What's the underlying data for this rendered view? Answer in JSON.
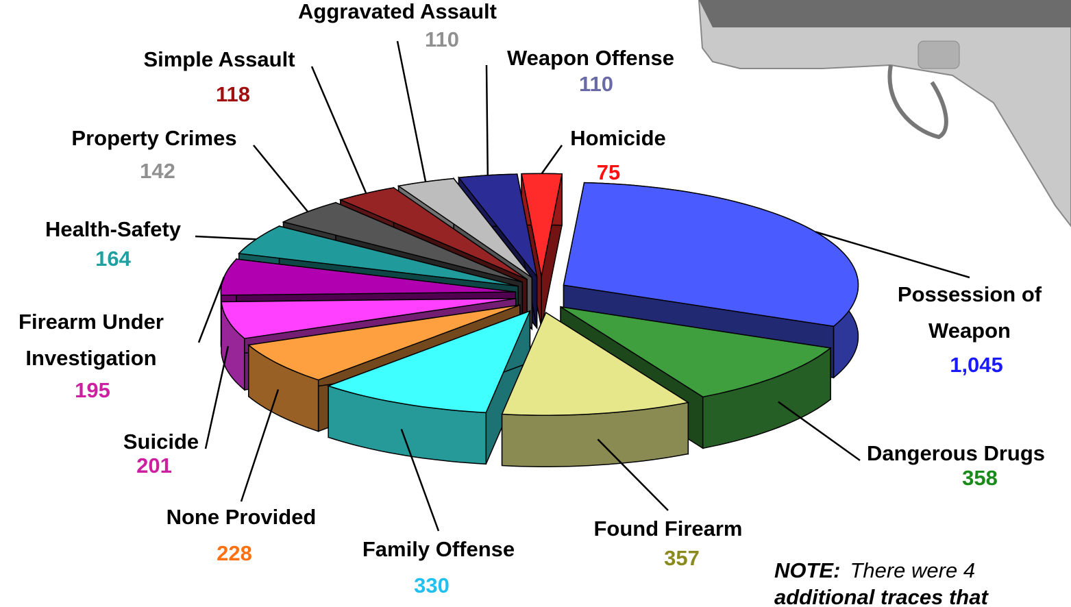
{
  "chart_data": {
    "type": "pie",
    "categories": [
      "Possession of Weapon",
      "Dangerous Drugs",
      "Found Firearm",
      "Family Offense",
      "None Provided",
      "Suicide",
      "Firearm Under Investigation",
      "Health-Safety",
      "Property Crimes",
      "Simple Assault",
      "Aggravated Assault",
      "Weapon Offense",
      "Homicide"
    ],
    "values": [
      1045,
      358,
      357,
      330,
      228,
      201,
      195,
      164,
      142,
      118,
      110,
      110,
      75
    ],
    "value_labels": [
      "1,045",
      "358",
      "357",
      "330",
      "228",
      "201",
      "195",
      "164",
      "142",
      "118",
      "110",
      "110",
      "75"
    ],
    "colors": [
      "#4a5cff",
      "#3f9f3f",
      "#e6e68a",
      "#40ffff",
      "#ffa040",
      "#ff40ff",
      "#b000b0",
      "#209a9a",
      "#555555",
      "#962424",
      "#bdbdbd",
      "#2c2c96",
      "#ff2a2a"
    ],
    "label_colors": [
      "#1a1aff",
      "#1a8a1a",
      "#8a8a1e",
      "#20c0f0",
      "#ff7010",
      "#cc20a0",
      "#cc20a0",
      "#20a0a0",
      "#909090",
      "#a01010",
      "#909090",
      "#6a6aa6",
      "#ff1010"
    ],
    "note_lead": "NOTE:",
    "note_lines": [
      "There were 4",
      "additional traces that"
    ]
  }
}
